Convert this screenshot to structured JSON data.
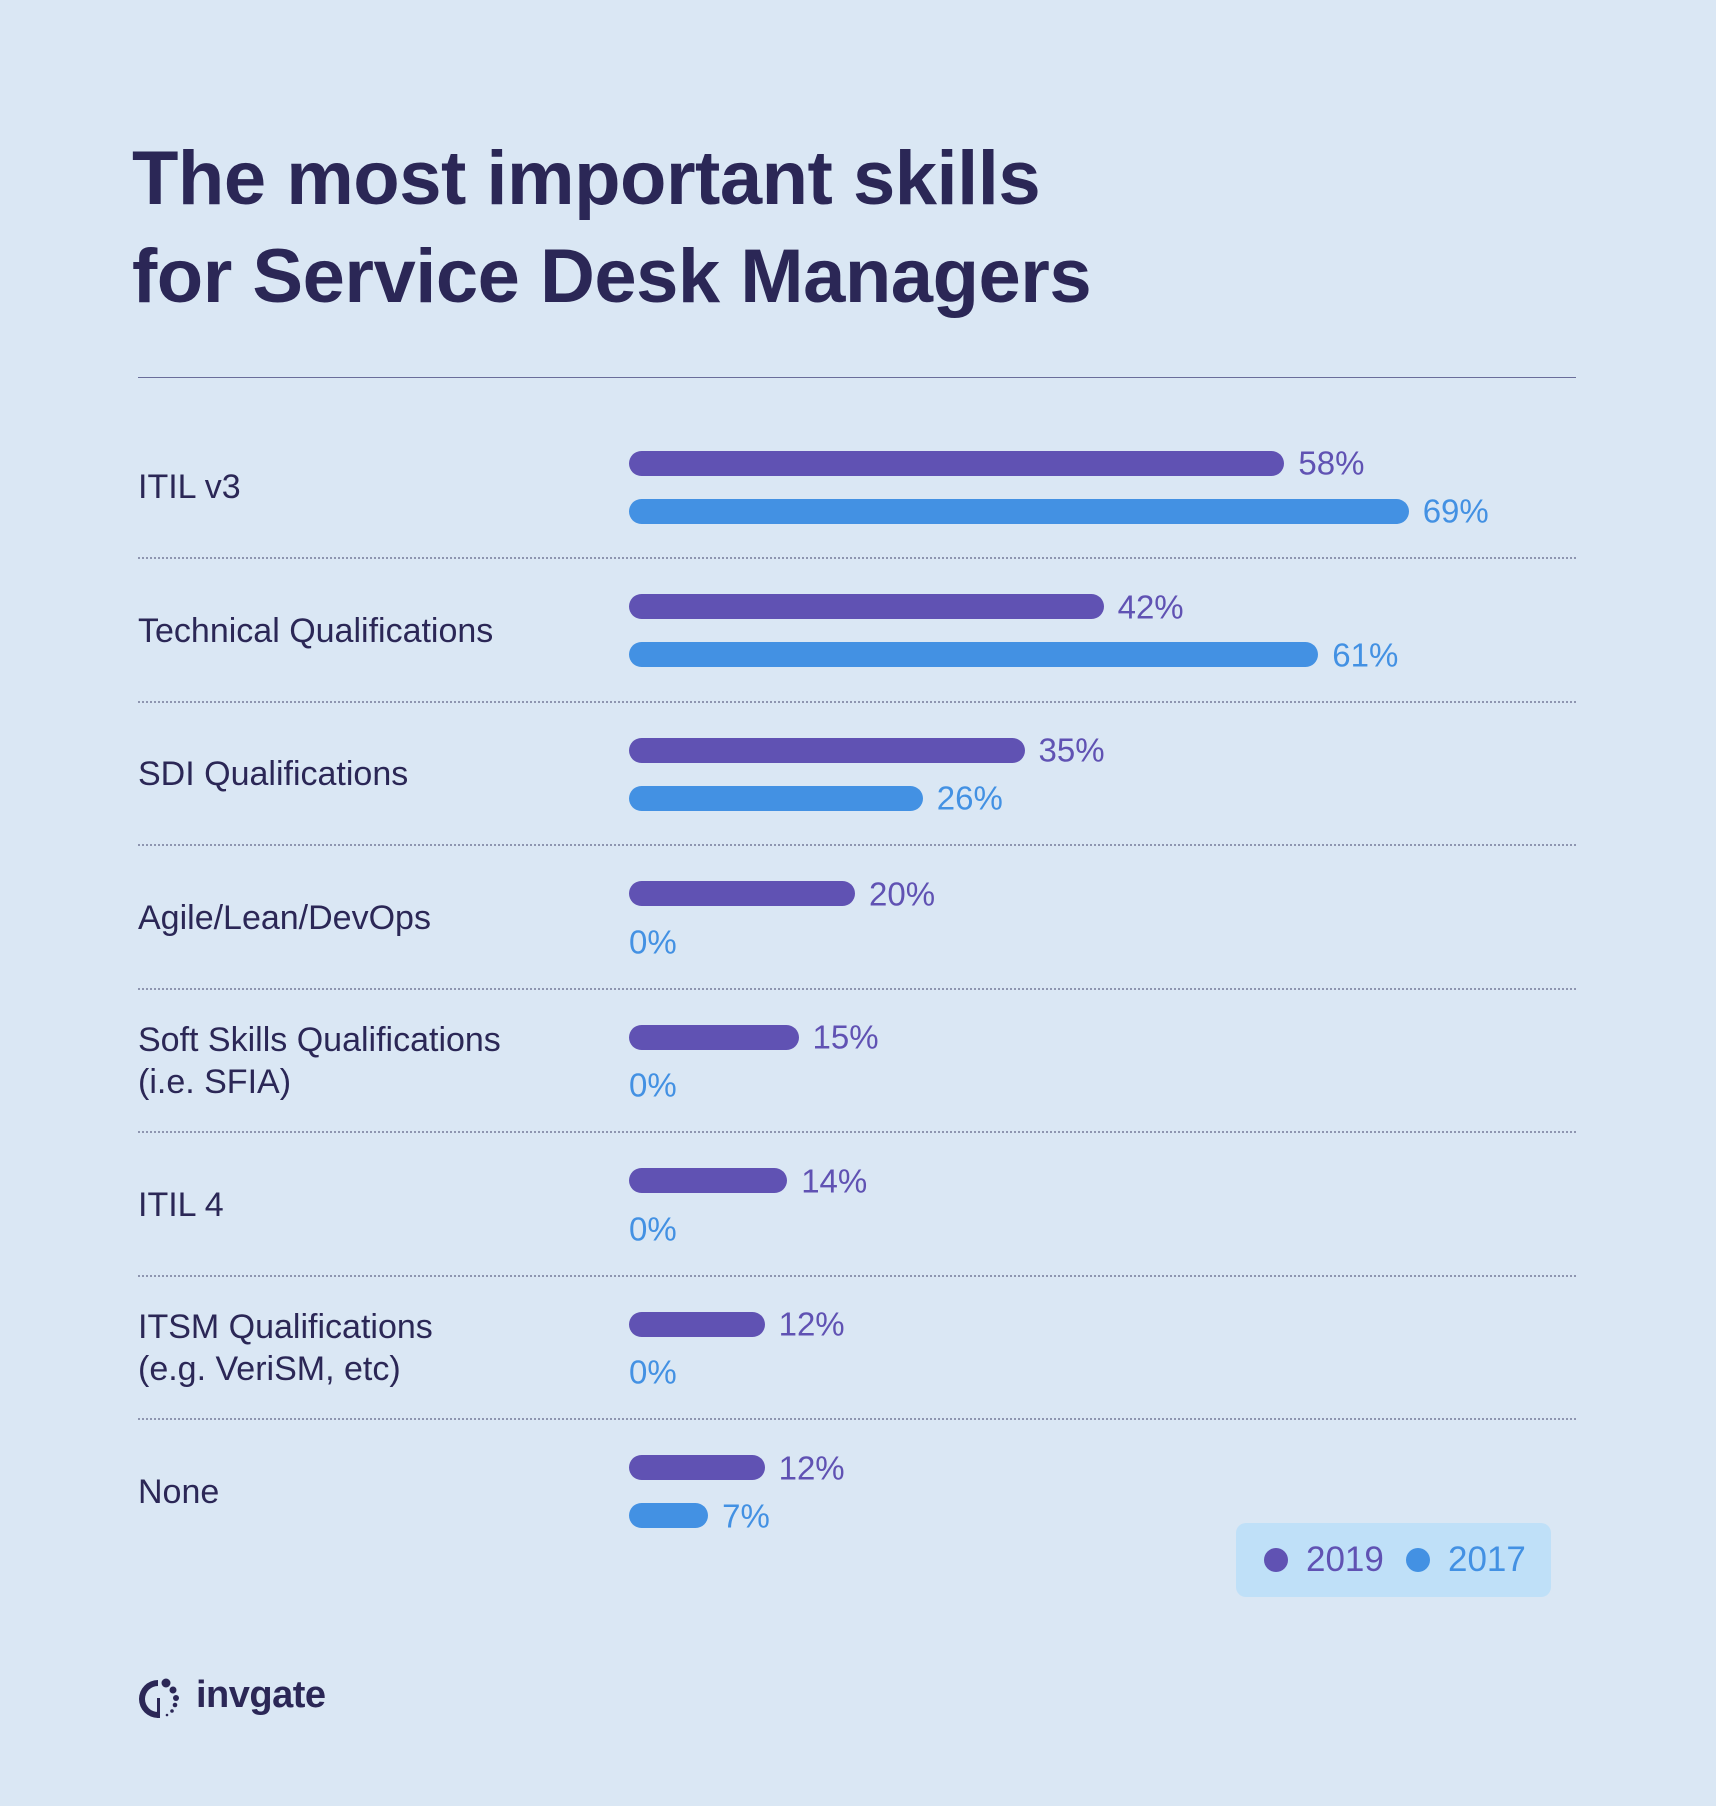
{
  "title_line1": "The most important skills",
  "title_line2": "for Service Desk Managers",
  "colors": {
    "background": "#dae7f4",
    "s2019": "#6052b3",
    "s2017": "#4391e3",
    "title": "#2b2756",
    "legend_bg": "#bfe0f8"
  },
  "chart_data": {
    "type": "bar",
    "orientation": "horizontal",
    "categories": [
      "ITIL v3",
      "Technical Qualifications",
      "SDI Qualifications",
      "Agile/Lean/DevOps",
      "Soft Skills Qualifications\n(i.e. SFIA)",
      "ITIL 4",
      "ITSM Qualifications\n(e.g. VeriSM, etc)",
      "None"
    ],
    "series": [
      {
        "name": "2019",
        "color": "#6052b3",
        "values": [
          58,
          42,
          35,
          20,
          15,
          14,
          12,
          12
        ],
        "labels": [
          "58%",
          "42%",
          "35%",
          "20%",
          "15%",
          "14%",
          "12%",
          "12%"
        ]
      },
      {
        "name": "2017",
        "color": "#4391e3",
        "values": [
          69,
          61,
          26,
          0,
          0,
          0,
          0,
          7
        ],
        "labels": [
          "69%",
          "61%",
          "26%",
          "0%",
          "0%",
          "0%",
          "0%",
          "7%"
        ]
      }
    ],
    "xlim": [
      0,
      100
    ],
    "grid": false,
    "legend_position": "bottom-right"
  },
  "legend": {
    "items": [
      {
        "label": "2019"
      },
      {
        "label": "2017"
      }
    ]
  },
  "brand": {
    "name": "invgate",
    "icon": "invgate-logo-icon"
  }
}
